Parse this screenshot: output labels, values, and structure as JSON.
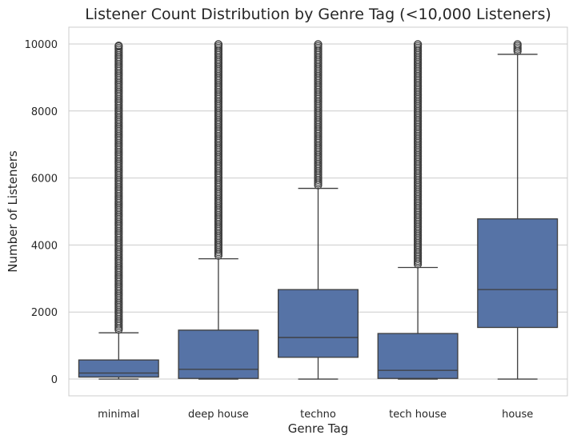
{
  "chart_data": {
    "type": "box",
    "title": "Listener Count Distribution by Genre Tag (<10,000 Listeners)",
    "xlabel": "Genre Tag",
    "ylabel": "Number of Listeners",
    "ylim": [
      -500,
      10500
    ],
    "yticks": [
      0,
      2000,
      4000,
      6000,
      8000,
      10000
    ],
    "ytick_labels": [
      "0",
      "2000",
      "4000",
      "6000",
      "8000",
      "10000"
    ],
    "grid": true,
    "box_color": "#5673a6",
    "line_color": "#3d3d3d",
    "categories": [
      "minimal",
      "deep house",
      "techno",
      "tech house",
      "house"
    ],
    "boxes": [
      {
        "name": "minimal",
        "whisker_low": 0,
        "q1": 60,
        "median": 180,
        "q3": 570,
        "whisker_high": 1380,
        "outlier_min": 1380,
        "outlier_max": 9950
      },
      {
        "name": "deep house",
        "whisker_low": 0,
        "q1": 20,
        "median": 290,
        "q3": 1460,
        "whisker_high": 3590,
        "outlier_min": 3590,
        "outlier_max": 9990
      },
      {
        "name": "techno",
        "whisker_low": 0,
        "q1": 650,
        "median": 1240,
        "q3": 2670,
        "whisker_high": 5690,
        "outlier_min": 5690,
        "outlier_max": 9990
      },
      {
        "name": "tech house",
        "whisker_low": 0,
        "q1": 20,
        "median": 260,
        "q3": 1360,
        "whisker_high": 3330,
        "outlier_min": 3330,
        "outlier_max": 9990
      },
      {
        "name": "house",
        "whisker_low": 0,
        "q1": 1540,
        "median": 2670,
        "q3": 4780,
        "whisker_high": 9690,
        "outlier_min": 9690,
        "outlier_max": 9990
      }
    ]
  }
}
